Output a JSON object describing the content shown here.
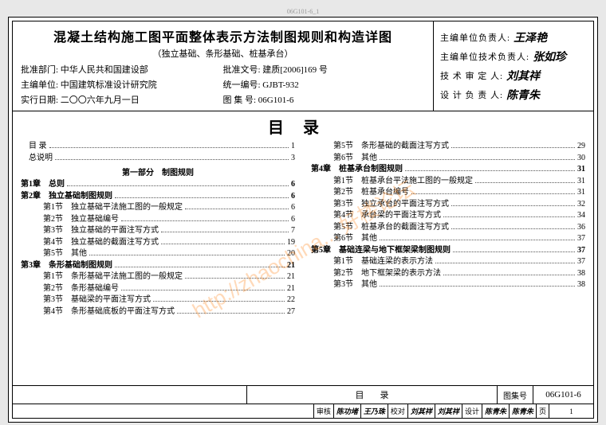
{
  "page_code_top": "06G101-6_1",
  "header": {
    "title": "混凝土结构施工图平面整体表示方法制图规则和构造详图",
    "subtitle": "（独立基础、条形基础、桩基承台）",
    "rows": [
      {
        "l": "批准部门: 中华人民共和国建设部",
        "r": "批准文号: 建质[2006]169 号"
      },
      {
        "l": "主编单位: 中国建筑标准设计研究院",
        "r": "统一编号: GJBT-932"
      },
      {
        "l": "实行日期: 二〇〇六年九月一日",
        "r": "图 集 号: 06G101-6"
      }
    ],
    "sigs": [
      {
        "label": "主编单位负责人:",
        "value": "王泽艳"
      },
      {
        "label": "主编单位技术负责人:",
        "value": "张如珍"
      },
      {
        "label": "技 术 审 定 人:",
        "value": "刘其祥"
      },
      {
        "label": "设 计 负 责 人:",
        "value": "陈青朱"
      }
    ]
  },
  "toc_title": "目录",
  "watermark": "http://zhaochina... 好楼论坛",
  "left_col": [
    {
      "t": "目 录",
      "p": "1",
      "cls": "indent1"
    },
    {
      "t": "总说明",
      "p": "3",
      "cls": "indent1"
    },
    {
      "t": "第一部分　制图规则",
      "cls": "part-hd"
    },
    {
      "t": "第1章　总则",
      "p": "6",
      "cls": "bold"
    },
    {
      "t": "第2章　独立基础制图规则",
      "p": "6",
      "cls": "bold"
    },
    {
      "t": "第1节　独立基础平法施工图的一般规定",
      "p": "6",
      "cls": "indent2"
    },
    {
      "t": "第2节　独立基础编号",
      "p": "6",
      "cls": "indent2"
    },
    {
      "t": "第3节　独立基础的平面注写方式",
      "p": "7",
      "cls": "indent2"
    },
    {
      "t": "第4节　独立基础的截面注写方式",
      "p": "19",
      "cls": "indent2"
    },
    {
      "t": "第5节　其他",
      "p": "20",
      "cls": "indent2"
    },
    {
      "t": "第3章　条形基础制图规则",
      "p": "21",
      "cls": "bold"
    },
    {
      "t": "第1节　条形基础平法施工图的一般规定",
      "p": "21",
      "cls": "indent2"
    },
    {
      "t": "第2节　条形基础编号",
      "p": "21",
      "cls": "indent2"
    },
    {
      "t": "第3节　基础梁的平面注写方式",
      "p": "22",
      "cls": "indent2"
    },
    {
      "t": "第4节　条形基础底板的平面注写方式",
      "p": "27",
      "cls": "indent2"
    }
  ],
  "right_col": [
    {
      "t": "第5节　条形基础的截面注写方式",
      "p": "29",
      "cls": "indent2"
    },
    {
      "t": "第6节　其他",
      "p": "30",
      "cls": "indent2"
    },
    {
      "t": "第4章　桩基承台制图规则",
      "p": "31",
      "cls": "bold"
    },
    {
      "t": "第1节　桩基承台平法施工图的一般规定",
      "p": "31",
      "cls": "indent2"
    },
    {
      "t": "第2节　桩基承台编号",
      "p": "31",
      "cls": "indent2"
    },
    {
      "t": "第3节　独立承台的平面注写方式",
      "p": "32",
      "cls": "indent2"
    },
    {
      "t": "第4节　承台梁的平面注写方式",
      "p": "34",
      "cls": "indent2"
    },
    {
      "t": "第5节　桩基承台的截面注写方式",
      "p": "36",
      "cls": "indent2"
    },
    {
      "t": "第6节　其他",
      "p": "37",
      "cls": "indent2"
    },
    {
      "t": "第5章　基础连梁与地下框架梁制图规则",
      "p": "37",
      "cls": "bold"
    },
    {
      "t": "第1节　基础连梁的表示方法",
      "p": "37",
      "cls": "indent2"
    },
    {
      "t": "第2节　地下框架梁的表示方法",
      "p": "38",
      "cls": "indent2"
    },
    {
      "t": "第3节　其他",
      "p": "38",
      "cls": "indent2"
    }
  ],
  "footer": {
    "title": "目录",
    "code_label": "图集号",
    "code_value": "06G101-6",
    "row": [
      {
        "k": "审核",
        "v": "陈功堵"
      },
      {
        "k": "",
        "v": "王乃珠"
      },
      {
        "k": "校对",
        "v": "刘其祥"
      },
      {
        "k": "",
        "v": "刘其祥"
      },
      {
        "k": "设计",
        "v": "陈青朱"
      },
      {
        "k": "",
        "v": "陈青朱"
      },
      {
        "k": "页",
        "v": "1"
      }
    ]
  }
}
